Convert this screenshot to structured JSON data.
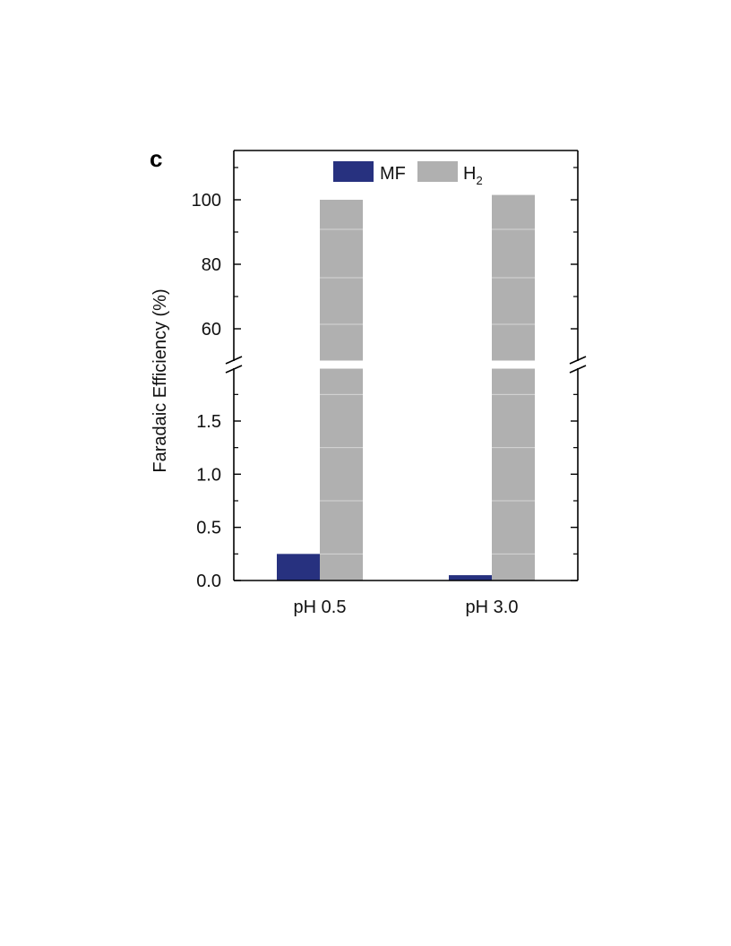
{
  "panel_label": "c",
  "chart_data": {
    "type": "bar",
    "title": "",
    "xlabel": "",
    "ylabel": "Faradaic Efficiency (%)",
    "categories": [
      "pH 0.5",
      "pH 3.0"
    ],
    "series": [
      {
        "name": "MF",
        "color": "#27317f",
        "values": [
          0.25,
          0.05
        ]
      },
      {
        "name": "H2",
        "color": "#b0b0b0",
        "values": [
          100,
          101.5
        ]
      }
    ],
    "legend": {
      "position": "top-center",
      "entries": [
        "MF",
        "H",
        "2"
      ]
    },
    "y_axis": {
      "broken": true,
      "lower_range": [
        0,
        2
      ],
      "upper_range": [
        50,
        115
      ],
      "lower_ticks": [
        "0.0",
        "0.5",
        "1.0",
        "1.5"
      ],
      "upper_ticks": [
        "60",
        "80",
        "100"
      ]
    },
    "grid": false
  }
}
